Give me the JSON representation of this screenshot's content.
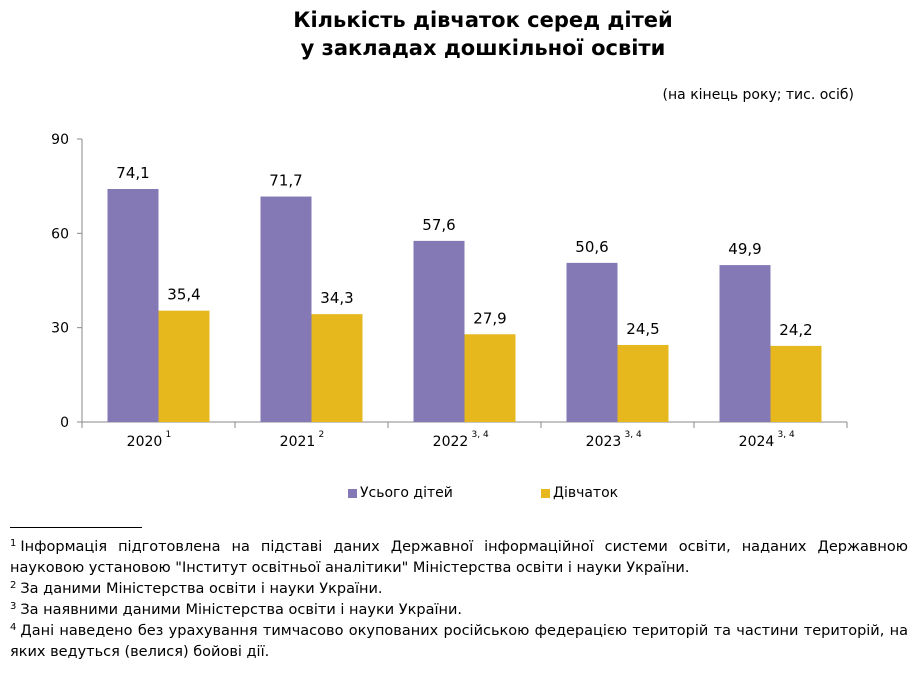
{
  "title_line1": "Кількість дівчаток серед дітей",
  "title_line2": "у закладах дошкільної освіти",
  "unit_note": "(на кінець року; тис. осіб)",
  "chart_data": {
    "type": "bar",
    "categories": [
      "2020",
      "2021",
      "2022",
      "2023",
      "2024"
    ],
    "category_superscripts": [
      "1",
      "2",
      "3, 4",
      "3, 4",
      "3, 4"
    ],
    "series": [
      {
        "name": "Усього дітей",
        "values": [
          74.1,
          71.7,
          57.6,
          50.6,
          49.9
        ],
        "labels": [
          "74,1",
          "71,7",
          "57,6",
          "50,6",
          "49,9"
        ],
        "color": "#8479b5"
      },
      {
        "name": "Дівчаток",
        "values": [
          35.4,
          34.3,
          27.9,
          24.5,
          24.2
        ],
        "labels": [
          "35,4",
          "34,3",
          "27,9",
          "24,5",
          "24,2"
        ],
        "color": "#e6b81e"
      }
    ],
    "ylim": [
      0,
      90
    ],
    "yticks": [
      0,
      30,
      60,
      90
    ],
    "legend_position": "bottom",
    "grid": false
  },
  "footnotes": [
    {
      "mark": "1",
      "text": "Інформація підготовлена на підставі даних Державної інформаційної системи освіти, наданих Державною науковою установою \"Інститут освітньої аналітики\" Міністерства освіти і науки України."
    },
    {
      "mark": "2",
      "text": "За даними Міністерства освіти і науки України."
    },
    {
      "mark": "3",
      "text": "За наявними даними Міністерства освіти і науки України."
    },
    {
      "mark": "4",
      "text": "Дані наведено без урахування тимчасово окупованих російською федерацією територій та частини територій, на яких ведуться (велися) бойові дії."
    }
  ]
}
